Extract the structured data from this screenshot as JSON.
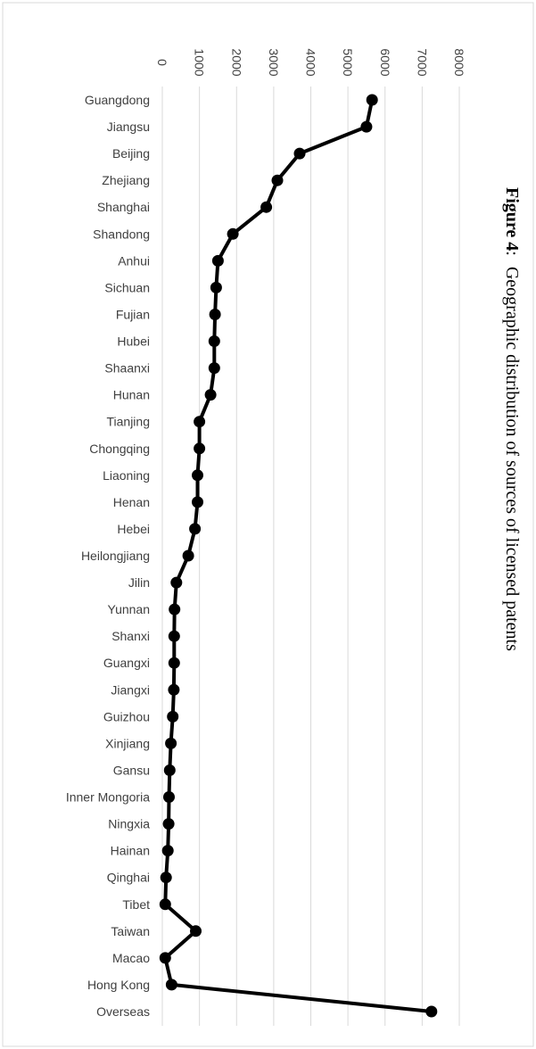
{
  "figure": {
    "caption_label": "Figure 4",
    "caption_sep": ":",
    "caption_text": "Geographic distribution of sources of licensed patents"
  },
  "chart_data": {
    "type": "line",
    "title": "",
    "xlabel": "",
    "ylabel": "",
    "ylim": [
      0,
      8000
    ],
    "yticks": [
      0,
      1000,
      2000,
      3000,
      4000,
      5000,
      6000,
      7000,
      8000
    ],
    "grid": true,
    "orientation": "rotated-90-clockwise",
    "colors": {
      "line": "#000000",
      "marker": "#000000",
      "grid": "#d9d9d9"
    },
    "categories": [
      "Guangdong",
      "Jiangsu",
      "Beijing",
      "Zhejiang",
      "Shanghai",
      "Shandong",
      "Anhui",
      "Sichuan",
      "Fujian",
      "Hubei",
      "Shaanxi",
      "Hunan",
      "Tianjing",
      "Chongqing",
      "Liaoning",
      "Henan",
      "Hebei",
      "Heilongjiang",
      "Jilin",
      "Yunnan",
      "Shanxi",
      "Guangxi",
      "Jiangxi",
      "Guizhou",
      "Xinjiang",
      "Gansu",
      "Inner Mongoria",
      "Ningxia",
      "Hainan",
      "Qinghai",
      "Tibet",
      "Taiwan",
      "Macao",
      "Hong Kong",
      "Overseas"
    ],
    "values": [
      5650,
      5500,
      3700,
      3100,
      2800,
      1900,
      1500,
      1450,
      1420,
      1400,
      1400,
      1300,
      1000,
      1000,
      950,
      950,
      880,
      700,
      380,
      330,
      320,
      320,
      310,
      280,
      230,
      200,
      180,
      170,
      150,
      100,
      80,
      900,
      80,
      250,
      7250
    ]
  }
}
